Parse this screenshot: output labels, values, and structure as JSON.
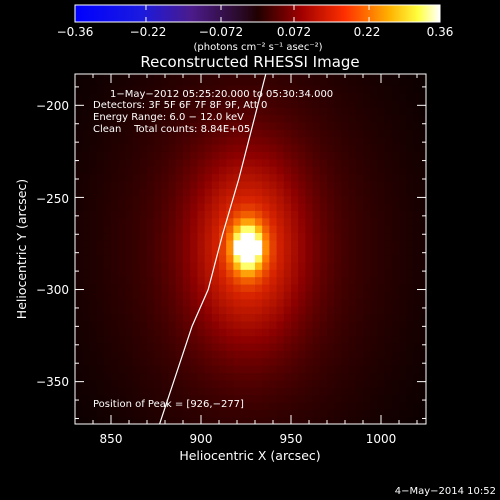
{
  "chart_data": {
    "type": "heatmap",
    "title": "Reconstructed RHESSI Image",
    "xlabel": "Heliocentric X (arcsec)",
    "ylabel": "Heliocentric Y (arcsec)",
    "xlim": [
      830,
      1025
    ],
    "ylim": [
      -373,
      -183
    ],
    "xticks": [
      850,
      900,
      950,
      1000
    ],
    "yticks": [
      -200,
      -250,
      -300,
      -350
    ],
    "x_tick_labels": [
      "850",
      "900",
      "950",
      "1000"
    ],
    "y_tick_labels": [
      "−200",
      "−250",
      "−300",
      "−350"
    ],
    "colorbar": {
      "range": [
        -0.36,
        0.36
      ],
      "ticks": [
        -0.36,
        -0.22,
        -0.072,
        0.072,
        0.22,
        0.36
      ],
      "tick_labels": [
        "−0.36",
        "−0.22",
        "−0.072",
        "0.072",
        "0.22",
        "0.36"
      ],
      "units_text": "(photons cm⁻² s⁻¹ asec⁻²)",
      "colormap": "blue-purple-red-yellow-white"
    },
    "annotations": {
      "time_range": "1−May−2012 05:25:20.000 to 05:30:34.000",
      "detectors": "Detectors: 3F 5F 6F 7F 8F 9F, Att 0",
      "energy_range": "Energy Range: 6.0 − 12.0 keV",
      "clean_counts": "Clean    Total counts: 8.84E+05",
      "peak_position": "Position of Peak = [926,−277]"
    },
    "peak": {
      "x": 926,
      "y": -277,
      "value": 0.36
    },
    "source_sigma": {
      "core_x": 6,
      "core_y": 9,
      "halo_x": 22,
      "halo_y": 36
    },
    "limb_curve": [
      [
        877,
        -373
      ],
      [
        895,
        -320
      ],
      [
        904,
        -300
      ],
      [
        912,
        -270
      ],
      [
        921,
        -240
      ],
      [
        936,
        -183
      ]
    ],
    "footer_date": "4−May−2014 10:52"
  }
}
